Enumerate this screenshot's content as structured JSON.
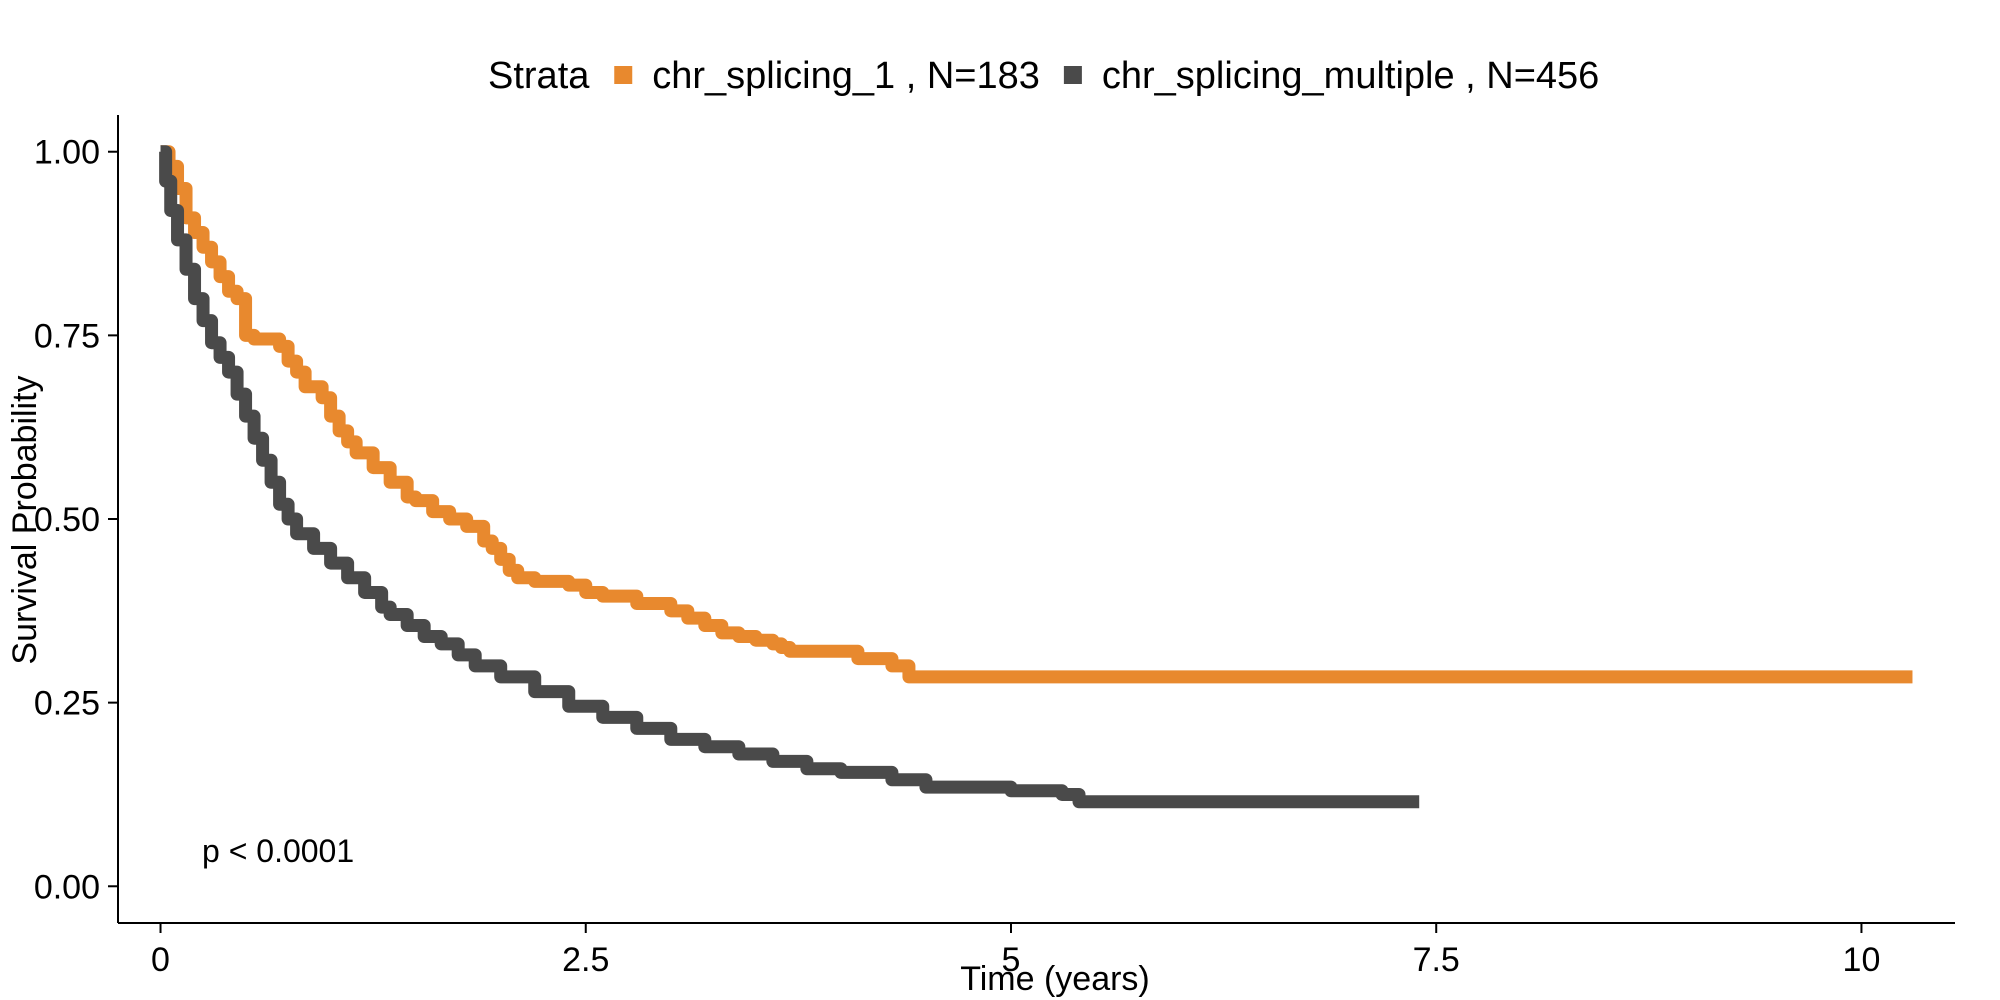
{
  "chart_data": {
    "type": "line",
    "xlabel": "Time (years)",
    "ylabel": "Survival Probability",
    "xlim": [
      -0.25,
      10.55
    ],
    "ylim": [
      -0.05,
      1.05
    ],
    "x_ticks": [
      0,
      2.5,
      5,
      7.5,
      10
    ],
    "x_tick_labels": [
      "0",
      "2.5",
      "5",
      "7.5",
      "10"
    ],
    "y_ticks": [
      0,
      0.25,
      0.5,
      0.75,
      1.0
    ],
    "y_tick_labels": [
      "0.00",
      "0.25",
      "0.50",
      "0.75",
      "1.00"
    ],
    "grid": false,
    "legend": {
      "title": "Strata",
      "position": "top",
      "entries": [
        "chr_splicing_1 , N=183",
        "chr_splicing_multiple , N=456"
      ]
    },
    "annotation": "p < 0.0001",
    "series": [
      {
        "name": "chr_splicing_1 , N=183",
        "color": "#E8892E",
        "x": [
          0,
          0.05,
          0.1,
          0.15,
          0.2,
          0.25,
          0.3,
          0.35,
          0.4,
          0.45,
          0.5,
          0.55,
          0.7,
          0.75,
          0.8,
          0.85,
          0.95,
          1.0,
          1.05,
          1.1,
          1.15,
          1.25,
          1.35,
          1.45,
          1.5,
          1.6,
          1.7,
          1.8,
          1.9,
          1.95,
          2.0,
          2.05,
          2.1,
          2.2,
          2.4,
          2.5,
          2.6,
          2.8,
          3.0,
          3.1,
          3.2,
          3.3,
          3.4,
          3.5,
          3.6,
          3.65,
          3.7,
          4.1,
          4.3,
          4.4,
          10.3
        ],
        "y": [
          1.0,
          0.98,
          0.95,
          0.91,
          0.89,
          0.87,
          0.85,
          0.83,
          0.81,
          0.8,
          0.75,
          0.745,
          0.735,
          0.715,
          0.7,
          0.68,
          0.665,
          0.64,
          0.62,
          0.605,
          0.59,
          0.57,
          0.55,
          0.53,
          0.525,
          0.51,
          0.5,
          0.49,
          0.47,
          0.46,
          0.445,
          0.43,
          0.42,
          0.415,
          0.41,
          0.4,
          0.395,
          0.385,
          0.375,
          0.365,
          0.355,
          0.345,
          0.34,
          0.335,
          0.33,
          0.325,
          0.32,
          0.31,
          0.3,
          0.285,
          0.285
        ]
      },
      {
        "name": "chr_splicing_multiple , N=456",
        "color": "#4A4A4A",
        "x": [
          0,
          0.03,
          0.06,
          0.1,
          0.15,
          0.2,
          0.25,
          0.3,
          0.35,
          0.4,
          0.45,
          0.5,
          0.55,
          0.6,
          0.65,
          0.7,
          0.75,
          0.8,
          0.9,
          1.0,
          1.1,
          1.2,
          1.3,
          1.35,
          1.45,
          1.55,
          1.65,
          1.75,
          1.85,
          2.0,
          2.2,
          2.4,
          2.6,
          2.8,
          3.0,
          3.2,
          3.4,
          3.6,
          3.8,
          4.0,
          4.3,
          4.5,
          5.0,
          5.3,
          5.4,
          7.4
        ],
        "y": [
          1.0,
          0.96,
          0.92,
          0.88,
          0.84,
          0.8,
          0.77,
          0.74,
          0.72,
          0.7,
          0.67,
          0.64,
          0.61,
          0.58,
          0.55,
          0.52,
          0.5,
          0.48,
          0.46,
          0.44,
          0.42,
          0.4,
          0.38,
          0.37,
          0.355,
          0.34,
          0.33,
          0.315,
          0.3,
          0.285,
          0.265,
          0.245,
          0.23,
          0.215,
          0.2,
          0.19,
          0.18,
          0.17,
          0.16,
          0.155,
          0.145,
          0.135,
          0.13,
          0.125,
          0.115,
          0.115
        ]
      }
    ]
  }
}
